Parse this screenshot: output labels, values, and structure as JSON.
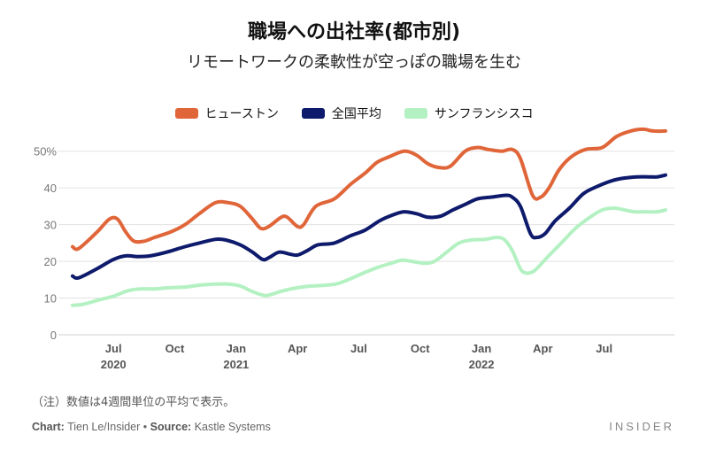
{
  "title": "職場への出社率(都市別)",
  "subtitle": "リモートワークの柔軟性が空っぽの職場を生む",
  "note": "（注）数値は4週間単位の平均で表示。",
  "source": {
    "chart_label": "Chart:",
    "chart_author": "Tien Le/Insider",
    "separator": "•",
    "source_label": "Source:",
    "source_name": "Kastle Systems"
  },
  "brand": "INSIDER",
  "colors": {
    "houston": "#e0663a",
    "national": "#0e1a6b",
    "sf": "#b4f1c2",
    "grid": "#e2e2e2",
    "tick": "#777777"
  },
  "chart_data": {
    "type": "line",
    "ylim": [
      0,
      55
    ],
    "yticks": [
      0,
      10,
      20,
      30,
      40,
      50
    ],
    "ytick_labels": [
      "0",
      "10",
      "20",
      "30",
      "40",
      "50%"
    ],
    "xlim": [
      0,
      29
    ],
    "xticks": [
      {
        "x": 2,
        "label": "Jul",
        "year": "2020"
      },
      {
        "x": 5,
        "label": "Oct",
        "year": ""
      },
      {
        "x": 8,
        "label": "Jan",
        "year": "2021"
      },
      {
        "x": 11,
        "label": "Apr",
        "year": ""
      },
      {
        "x": 14,
        "label": "Jul",
        "year": ""
      },
      {
        "x": 17,
        "label": "Oct",
        "year": ""
      },
      {
        "x": 20,
        "label": "Jan",
        "year": "2022"
      },
      {
        "x": 23,
        "label": "Apr",
        "year": ""
      },
      {
        "x": 26,
        "label": "Jul",
        "year": ""
      }
    ],
    "grid": true,
    "legend_position": "top-center",
    "series": [
      {
        "name": "ヒューストン",
        "color_key": "houston",
        "points": [
          [
            0.0,
            24
          ],
          [
            0.3,
            23.5
          ],
          [
            1.2,
            28
          ],
          [
            1.8,
            31.5
          ],
          [
            2.2,
            31.5
          ],
          [
            2.6,
            28
          ],
          [
            3.0,
            25.5
          ],
          [
            3.5,
            25.5
          ],
          [
            4.0,
            26.5
          ],
          [
            4.8,
            28
          ],
          [
            5.5,
            30
          ],
          [
            6.2,
            33
          ],
          [
            7.0,
            36
          ],
          [
            7.6,
            36
          ],
          [
            8.2,
            35
          ],
          [
            8.8,
            31.5
          ],
          [
            9.2,
            29
          ],
          [
            9.6,
            29.5
          ],
          [
            10.2,
            32
          ],
          [
            10.5,
            32
          ],
          [
            11.0,
            29.5
          ],
          [
            11.3,
            30
          ],
          [
            11.9,
            35
          ],
          [
            12.8,
            37
          ],
          [
            13.6,
            41
          ],
          [
            14.3,
            44
          ],
          [
            14.9,
            47
          ],
          [
            15.5,
            48.5
          ],
          [
            16.2,
            50
          ],
          [
            16.8,
            49
          ],
          [
            17.4,
            46.5
          ],
          [
            18.0,
            45.5
          ],
          [
            18.5,
            46
          ],
          [
            19.2,
            50
          ],
          [
            19.8,
            51
          ],
          [
            20.3,
            50.5
          ],
          [
            21.0,
            50
          ],
          [
            21.5,
            50.5
          ],
          [
            21.9,
            48
          ],
          [
            22.5,
            38
          ],
          [
            22.9,
            37.5
          ],
          [
            23.3,
            40
          ],
          [
            23.8,
            45
          ],
          [
            24.4,
            48.5
          ],
          [
            25.1,
            50.5
          ],
          [
            25.9,
            51
          ],
          [
            26.6,
            54
          ],
          [
            27.3,
            55.5
          ],
          [
            27.9,
            56
          ],
          [
            28.4,
            55.5
          ],
          [
            29.0,
            55.5
          ]
        ]
      },
      {
        "name": "全国平均",
        "color_key": "national",
        "points": [
          [
            0.0,
            16
          ],
          [
            0.3,
            15.5
          ],
          [
            1.2,
            18
          ],
          [
            2.0,
            20.5
          ],
          [
            2.6,
            21.5
          ],
          [
            3.2,
            21.3
          ],
          [
            3.8,
            21.5
          ],
          [
            4.6,
            22.5
          ],
          [
            5.5,
            24
          ],
          [
            6.2,
            25
          ],
          [
            7.0,
            26
          ],
          [
            7.5,
            25.8
          ],
          [
            8.2,
            24.5
          ],
          [
            8.8,
            22.5
          ],
          [
            9.3,
            20.5
          ],
          [
            9.6,
            21
          ],
          [
            10.1,
            22.5
          ],
          [
            10.6,
            22
          ],
          [
            11.0,
            21.7
          ],
          [
            11.5,
            23
          ],
          [
            12.0,
            24.5
          ],
          [
            12.8,
            25
          ],
          [
            13.6,
            27
          ],
          [
            14.3,
            28.5
          ],
          [
            15.0,
            31
          ],
          [
            15.6,
            32.5
          ],
          [
            16.2,
            33.5
          ],
          [
            16.8,
            33
          ],
          [
            17.4,
            32
          ],
          [
            18.0,
            32.3
          ],
          [
            18.6,
            34
          ],
          [
            19.2,
            35.5
          ],
          [
            19.8,
            37
          ],
          [
            20.5,
            37.5
          ],
          [
            21.2,
            38
          ],
          [
            21.5,
            37.5
          ],
          [
            21.9,
            35
          ],
          [
            22.4,
            27.5
          ],
          [
            22.7,
            26.5
          ],
          [
            23.1,
            27.5
          ],
          [
            23.6,
            31
          ],
          [
            24.3,
            34.5
          ],
          [
            25.0,
            38.5
          ],
          [
            25.7,
            40.5
          ],
          [
            26.4,
            42
          ],
          [
            27.0,
            42.7
          ],
          [
            27.6,
            43
          ],
          [
            28.2,
            43
          ],
          [
            28.6,
            43
          ],
          [
            29.0,
            43.5
          ]
        ]
      },
      {
        "name": "サンフランシスコ",
        "color_key": "sf",
        "points": [
          [
            0.0,
            8
          ],
          [
            0.5,
            8.3
          ],
          [
            1.3,
            9.5
          ],
          [
            2.0,
            10.5
          ],
          [
            2.7,
            12
          ],
          [
            3.3,
            12.5
          ],
          [
            4.0,
            12.5
          ],
          [
            4.7,
            12.8
          ],
          [
            5.5,
            13
          ],
          [
            6.2,
            13.5
          ],
          [
            7.0,
            13.8
          ],
          [
            7.6,
            13.8
          ],
          [
            8.2,
            13.3
          ],
          [
            8.7,
            12
          ],
          [
            9.3,
            10.8
          ],
          [
            9.6,
            10.8
          ],
          [
            10.3,
            12
          ],
          [
            11.0,
            12.8
          ],
          [
            11.7,
            13.3
          ],
          [
            12.4,
            13.5
          ],
          [
            13.0,
            14
          ],
          [
            13.7,
            15.5
          ],
          [
            14.3,
            17
          ],
          [
            15.0,
            18.5
          ],
          [
            15.6,
            19.5
          ],
          [
            16.1,
            20.3
          ],
          [
            16.6,
            20
          ],
          [
            17.2,
            19.5
          ],
          [
            17.7,
            20
          ],
          [
            18.3,
            22.5
          ],
          [
            18.9,
            25
          ],
          [
            19.5,
            25.8
          ],
          [
            20.2,
            26
          ],
          [
            20.7,
            26.5
          ],
          [
            21.1,
            26
          ],
          [
            21.5,
            23
          ],
          [
            21.9,
            18
          ],
          [
            22.2,
            16.8
          ],
          [
            22.6,
            17.5
          ],
          [
            23.2,
            21
          ],
          [
            23.9,
            25
          ],
          [
            24.6,
            29
          ],
          [
            25.3,
            32
          ],
          [
            25.9,
            34
          ],
          [
            26.5,
            34.5
          ],
          [
            27.0,
            34
          ],
          [
            27.5,
            33.5
          ],
          [
            28.1,
            33.5
          ],
          [
            28.6,
            33.5
          ],
          [
            29.0,
            34
          ]
        ]
      }
    ]
  }
}
